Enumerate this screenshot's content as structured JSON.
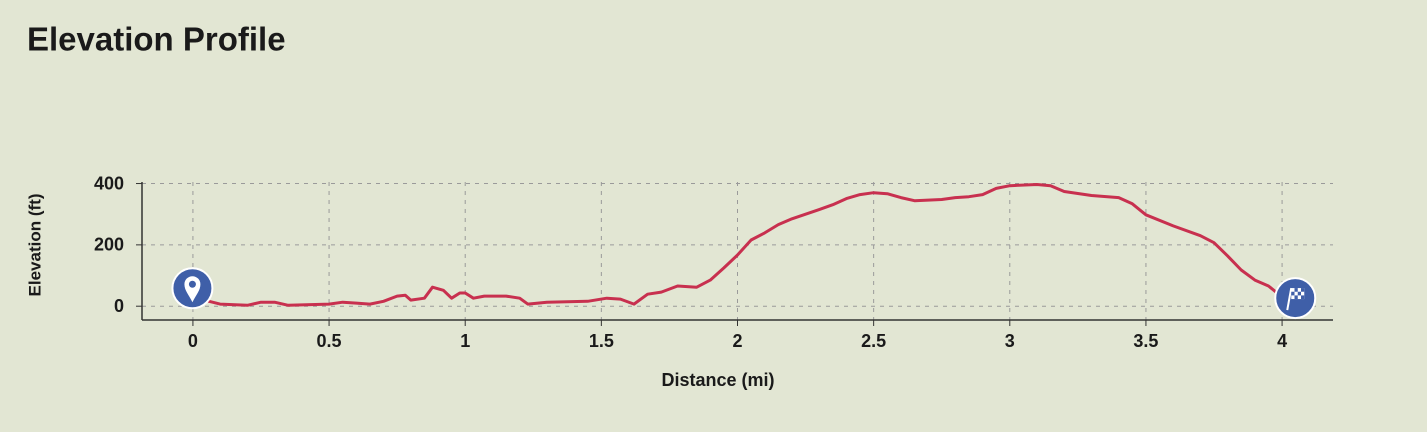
{
  "chart_data": {
    "type": "line",
    "title": "Elevation Profile",
    "xlabel": "Distance (mi)",
    "ylabel": "Elevation (ft)",
    "x": [
      0,
      0.05,
      0.1,
      0.2,
      0.25,
      0.3,
      0.35,
      0.5,
      0.55,
      0.6,
      0.65,
      0.7,
      0.75,
      0.78,
      0.8,
      0.85,
      0.88,
      0.92,
      0.95,
      0.98,
      1.0,
      1.03,
      1.07,
      1.15,
      1.2,
      1.23,
      1.3,
      1.45,
      1.52,
      1.57,
      1.62,
      1.67,
      1.72,
      1.78,
      1.85,
      1.9,
      1.95,
      2.0,
      2.05,
      2.1,
      2.15,
      2.2,
      2.3,
      2.35,
      2.4,
      2.45,
      2.5,
      2.55,
      2.6,
      2.65,
      2.75,
      2.8,
      2.85,
      2.9,
      2.95,
      3.0,
      3.1,
      3.15,
      3.2,
      3.3,
      3.4,
      3.45,
      3.5,
      3.6,
      3.7,
      3.75,
      3.8,
      3.85,
      3.9,
      3.95,
      4.0,
      4.03
    ],
    "series": [
      {
        "name": "Elevation",
        "color": "#c8304f",
        "values": [
          13,
          18,
          7,
          3,
          13,
          13,
          3,
          7,
          13,
          10,
          7,
          16,
          33,
          36,
          20,
          26,
          62,
          52,
          26,
          43,
          43,
          26,
          33,
          33,
          26,
          7,
          13,
          16,
          26,
          23,
          7,
          39,
          46,
          66,
          62,
          85,
          125,
          167,
          216,
          239,
          266,
          285,
          315,
          331,
          351,
          364,
          370,
          367,
          354,
          344,
          348,
          354,
          357,
          364,
          384,
          393,
          397,
          393,
          374,
          361,
          354,
          334,
          298,
          262,
          230,
          207,
          164,
          118,
          85,
          66,
          30,
          20
        ]
      }
    ],
    "xlim": [
      -0.187,
      4.187
    ],
    "xticks": [
      0,
      0.5,
      1,
      1.5,
      2,
      2.5,
      3,
      3.5,
      4
    ],
    "ylim": [
      -45,
      405
    ],
    "yticks": [
      0,
      200,
      400
    ],
    "grid": true
  }
}
